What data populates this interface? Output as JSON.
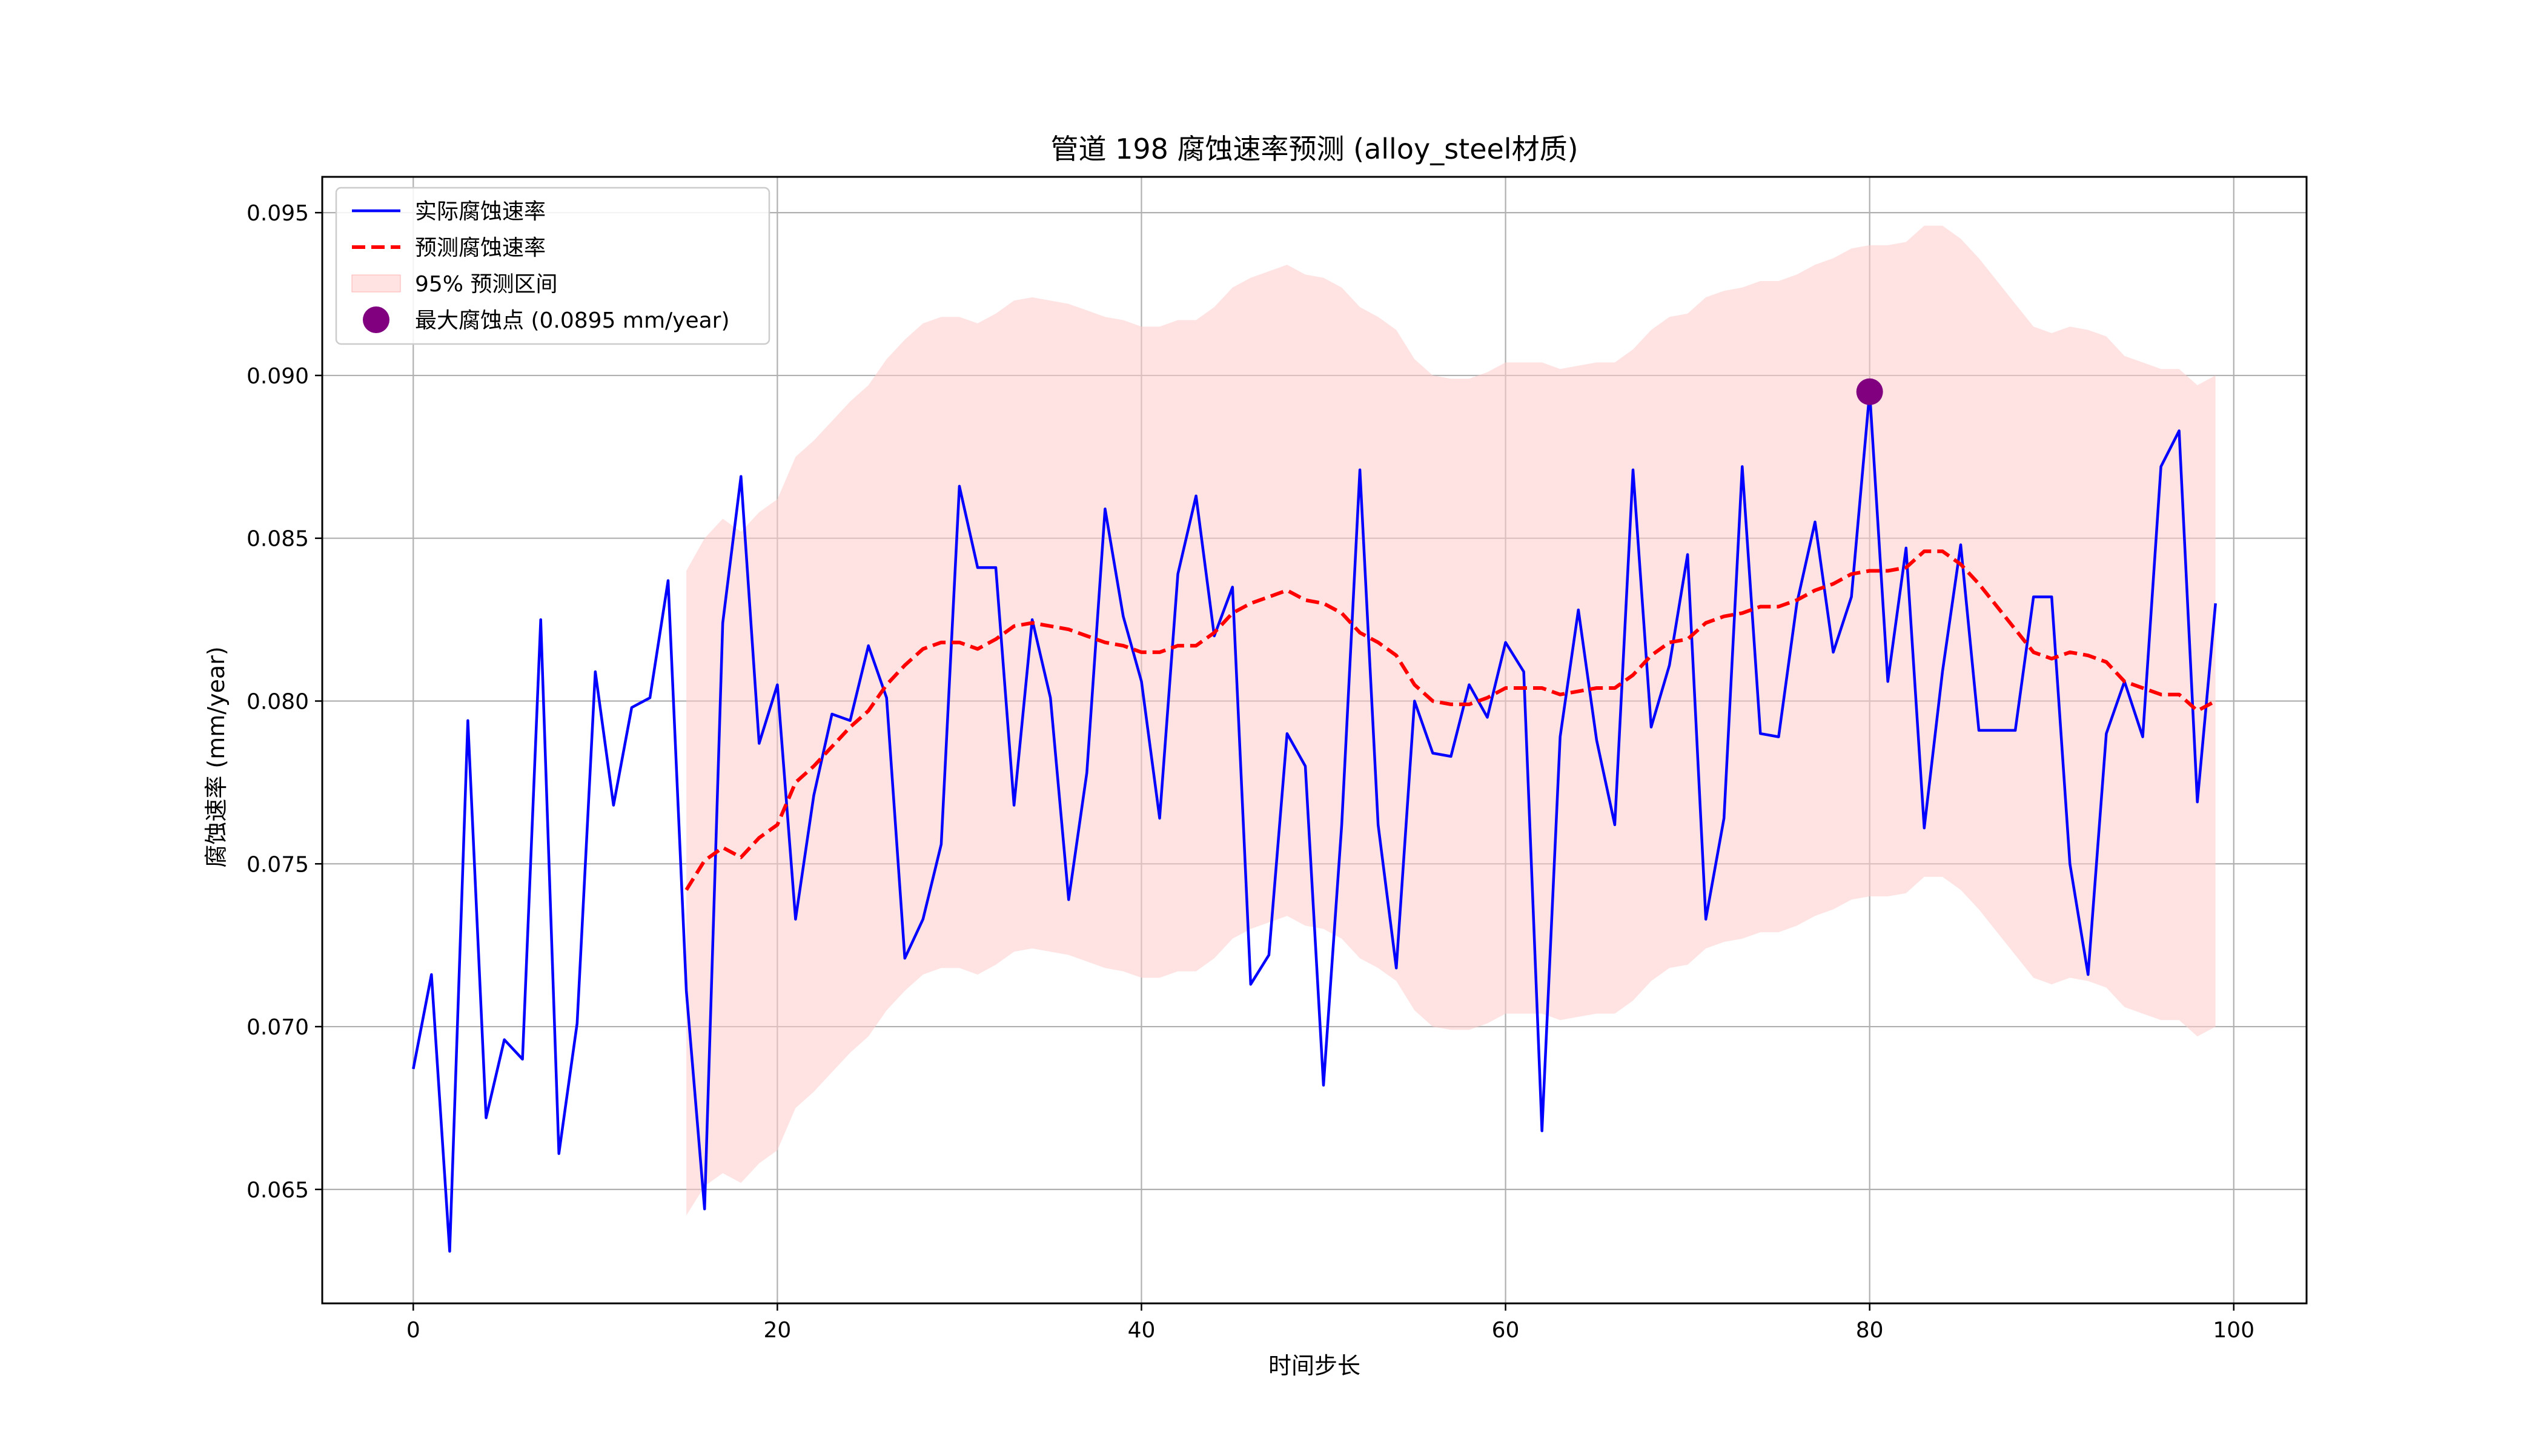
{
  "chart_data": {
    "type": "line",
    "title": "管道 198 腐蚀速率预测 (alloy_steel材质)",
    "xlabel": "时间步长",
    "ylabel": "腐蚀速率 (mm/year)",
    "xlim": [
      -5,
      104
    ],
    "ylim": [
      0.0615,
      0.0961
    ],
    "xticks": [
      0,
      20,
      40,
      60,
      80,
      100
    ],
    "yticks": [
      0.065,
      0.07,
      0.075,
      0.08,
      0.085,
      0.09,
      0.095
    ],
    "ytick_labels": [
      "0.065",
      "0.070",
      "0.075",
      "0.080",
      "0.085",
      "0.090",
      "0.095"
    ],
    "grid": true,
    "legend_position": "top-left",
    "series": [
      {
        "name": "实际腐蚀速率",
        "kind": "line",
        "color": "#0000ff",
        "x": [
          0,
          1,
          2,
          3,
          4,
          5,
          6,
          7,
          8,
          9,
          10,
          11,
          12,
          13,
          14,
          15,
          16,
          17,
          18,
          19,
          20,
          21,
          22,
          23,
          24,
          25,
          26,
          27,
          28,
          29,
          30,
          31,
          32,
          33,
          34,
          35,
          36,
          37,
          38,
          39,
          40,
          41,
          42,
          43,
          44,
          45,
          46,
          47,
          48,
          49,
          50,
          51,
          52,
          53,
          54,
          55,
          56,
          57,
          58,
          59,
          60,
          61,
          62,
          63,
          64,
          65,
          66,
          67,
          68,
          69,
          70,
          71,
          72,
          73,
          74,
          75,
          76,
          77,
          78,
          79,
          80,
          81,
          82,
          83,
          84,
          85,
          86,
          87,
          88,
          89,
          90,
          91,
          92,
          93,
          94,
          95,
          96,
          97,
          98,
          99
        ],
        "y": [
          0.0687,
          0.0716,
          0.0631,
          0.0794,
          0.0672,
          0.0696,
          0.069,
          0.0825,
          0.0661,
          0.0701,
          0.0809,
          0.0768,
          0.0798,
          0.0801,
          0.0837,
          0.0711,
          0.0644,
          0.0824,
          0.0869,
          0.0787,
          0.0805,
          0.0733,
          0.0771,
          0.0796,
          0.0794,
          0.0817,
          0.0801,
          0.0721,
          0.0733,
          0.0756,
          0.0866,
          0.0841,
          0.0841,
          0.0768,
          0.0825,
          0.0801,
          0.0739,
          0.0778,
          0.0859,
          0.0826,
          0.0806,
          0.0764,
          0.0839,
          0.0863,
          0.082,
          0.0835,
          0.0713,
          0.0722,
          0.079,
          0.078,
          0.0682,
          0.0762,
          0.0871,
          0.0762,
          0.0718,
          0.08,
          0.0784,
          0.0783,
          0.0805,
          0.0795,
          0.0818,
          0.0809,
          0.0668,
          0.0789,
          0.0828,
          0.0788,
          0.0762,
          0.0871,
          0.0792,
          0.0811,
          0.0845,
          0.0733,
          0.0764,
          0.0872,
          0.079,
          0.0789,
          0.083,
          0.0855,
          0.0815,
          0.0832,
          0.0895,
          0.0806,
          0.0847,
          0.0761,
          0.0809,
          0.0848,
          0.0791,
          0.0791,
          0.0791,
          0.0832,
          0.0832,
          0.075,
          0.0716,
          0.079,
          0.0806,
          0.0789,
          0.0872,
          0.0883,
          0.0769,
          0.083
        ]
      },
      {
        "name": "预测腐蚀速率",
        "kind": "dashed-line",
        "color": "#ff0000",
        "x": [
          15,
          16,
          17,
          18,
          19,
          20,
          21,
          22,
          23,
          24,
          25,
          26,
          27,
          28,
          29,
          30,
          31,
          32,
          33,
          34,
          35,
          36,
          37,
          38,
          39,
          40,
          41,
          42,
          43,
          44,
          45,
          46,
          47,
          48,
          49,
          50,
          51,
          52,
          53,
          54,
          55,
          56,
          57,
          58,
          59,
          60,
          61,
          62,
          63,
          64,
          65,
          66,
          67,
          68,
          69,
          70,
          71,
          72,
          73,
          74,
          75,
          76,
          77,
          78,
          79,
          80,
          81,
          82,
          83,
          84,
          85,
          86,
          87,
          88,
          89,
          90,
          91,
          92,
          93,
          94,
          95,
          96,
          97,
          98,
          99
        ],
        "y": [
          0.0742,
          0.0751,
          0.0755,
          0.0752,
          0.0758,
          0.0762,
          0.0775,
          0.078,
          0.0786,
          0.0792,
          0.0797,
          0.0805,
          0.0811,
          0.0816,
          0.0818,
          0.0818,
          0.0816,
          0.0819,
          0.0823,
          0.0824,
          0.0823,
          0.0822,
          0.082,
          0.0818,
          0.0817,
          0.0815,
          0.0815,
          0.0817,
          0.0817,
          0.0821,
          0.0827,
          0.083,
          0.0832,
          0.0834,
          0.0831,
          0.083,
          0.0827,
          0.0821,
          0.0818,
          0.0814,
          0.0805,
          0.08,
          0.0799,
          0.0799,
          0.0801,
          0.0804,
          0.0804,
          0.0804,
          0.0802,
          0.0803,
          0.0804,
          0.0804,
          0.0808,
          0.0814,
          0.0818,
          0.0819,
          0.0824,
          0.0826,
          0.0827,
          0.0829,
          0.0829,
          0.0831,
          0.0834,
          0.0836,
          0.0839,
          0.084,
          0.084,
          0.0841,
          0.0846,
          0.0846,
          0.0842,
          0.0836,
          0.0829,
          0.0822,
          0.0815,
          0.0813,
          0.0815,
          0.0814,
          0.0812,
          0.0806,
          0.0804,
          0.0802,
          0.0802,
          0.0797,
          0.08
        ]
      }
    ],
    "band": {
      "name": "95% 预测区间",
      "color": "#ffcccc",
      "x": [
        15,
        16,
        17,
        18,
        19,
        20,
        21,
        22,
        23,
        24,
        25,
        26,
        27,
        28,
        29,
        30,
        31,
        32,
        33,
        34,
        35,
        36,
        37,
        38,
        39,
        40,
        41,
        42,
        43,
        44,
        45,
        46,
        47,
        48,
        49,
        50,
        51,
        52,
        53,
        54,
        55,
        56,
        57,
        58,
        59,
        60,
        61,
        62,
        63,
        64,
        65,
        66,
        67,
        68,
        69,
        70,
        71,
        72,
        73,
        74,
        75,
        76,
        77,
        78,
        79,
        80,
        81,
        82,
        83,
        84,
        85,
        86,
        87,
        88,
        89,
        90,
        91,
        92,
        93,
        94,
        95,
        96,
        97,
        98,
        99
      ],
      "upper": [
        0.084,
        0.085,
        0.0856,
        0.0852,
        0.0858,
        0.0862,
        0.0875,
        0.088,
        0.0886,
        0.0892,
        0.0897,
        0.0905,
        0.0911,
        0.0916,
        0.0918,
        0.0918,
        0.0916,
        0.0919,
        0.0923,
        0.0924,
        0.0923,
        0.0922,
        0.092,
        0.0918,
        0.0917,
        0.0915,
        0.0915,
        0.0917,
        0.0917,
        0.0921,
        0.0927,
        0.093,
        0.0932,
        0.0934,
        0.0931,
        0.093,
        0.0927,
        0.0921,
        0.0918,
        0.0914,
        0.0905,
        0.09,
        0.0899,
        0.0899,
        0.0901,
        0.0904,
        0.0904,
        0.0904,
        0.0902,
        0.0903,
        0.0904,
        0.0904,
        0.0908,
        0.0914,
        0.0918,
        0.0919,
        0.0924,
        0.0926,
        0.0927,
        0.0929,
        0.0929,
        0.0931,
        0.0934,
        0.0936,
        0.0939,
        0.094,
        0.094,
        0.0941,
        0.0946,
        0.0946,
        0.0942,
        0.0936,
        0.0929,
        0.0922,
        0.0915,
        0.0913,
        0.0915,
        0.0914,
        0.0912,
        0.0906,
        0.0904,
        0.0902,
        0.0902,
        0.0897,
        0.09
      ],
      "lower": [
        0.0642,
        0.0651,
        0.0655,
        0.0652,
        0.0658,
        0.0662,
        0.0675,
        0.068,
        0.0686,
        0.0692,
        0.0697,
        0.0705,
        0.0711,
        0.0716,
        0.0718,
        0.0718,
        0.0716,
        0.0719,
        0.0723,
        0.0724,
        0.0723,
        0.0722,
        0.072,
        0.0718,
        0.0717,
        0.0715,
        0.0715,
        0.0717,
        0.0717,
        0.0721,
        0.0727,
        0.073,
        0.0732,
        0.0734,
        0.0731,
        0.073,
        0.0727,
        0.0721,
        0.0718,
        0.0714,
        0.0705,
        0.07,
        0.0699,
        0.0699,
        0.0701,
        0.0704,
        0.0704,
        0.0704,
        0.0702,
        0.0703,
        0.0704,
        0.0704,
        0.0708,
        0.0714,
        0.0718,
        0.0719,
        0.0724,
        0.0726,
        0.0727,
        0.0729,
        0.0729,
        0.0731,
        0.0734,
        0.0736,
        0.0739,
        0.074,
        0.074,
        0.0741,
        0.0746,
        0.0746,
        0.0742,
        0.0736,
        0.0729,
        0.0722,
        0.0715,
        0.0713,
        0.0715,
        0.0714,
        0.0712,
        0.0706,
        0.0704,
        0.0702,
        0.0702,
        0.0697,
        0.07
      ]
    },
    "highlight": {
      "name": "最大腐蚀点 (0.0895 mm/year)",
      "x": 80,
      "y": 0.0895,
      "color": "#800080"
    }
  }
}
